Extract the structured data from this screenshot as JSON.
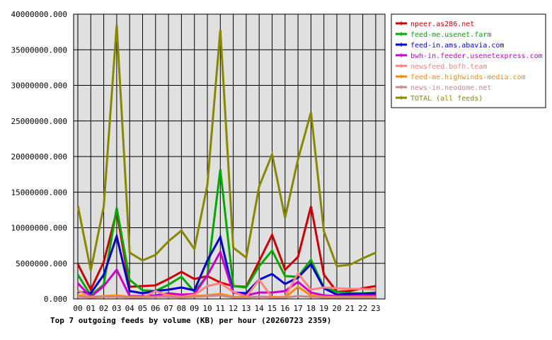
{
  "chart_data": {
    "type": "line",
    "title": "Top 7 outgoing feeds by volume (KB) per hour (20260723 2359)",
    "categories": [
      "00",
      "01",
      "02",
      "03",
      "04",
      "05",
      "06",
      "07",
      "08",
      "09",
      "10",
      "11",
      "12",
      "13",
      "14",
      "15",
      "16",
      "17",
      "18",
      "19",
      "20",
      "21",
      "22",
      "23"
    ],
    "y_tick_labels": [
      "0.000",
      "5000000.000",
      "10000000.000",
      "15000000.000",
      "20000000.000",
      "25000000.000",
      "30000000.000",
      "35000000.000",
      "40000000.000"
    ],
    "ylim": [
      0,
      40000000
    ],
    "grid": true,
    "legend_position": "right",
    "plot_background": "#e0e0e0",
    "series": [
      {
        "name": "npeer.as286.net",
        "color": "#cc0000",
        "values": [
          4900000,
          1300000,
          5200000,
          12300000,
          1700000,
          1800000,
          1900000,
          2800000,
          3800000,
          2800000,
          3200000,
          2300000,
          1800000,
          1700000,
          5300000,
          9000000,
          4100000,
          5900000,
          13000000,
          3400000,
          1000000,
          1100000,
          1500000,
          1800000
        ]
      },
      {
        "name": "feed-me.usenet.farm",
        "color": "#00aa00",
        "values": [
          3400000,
          500000,
          2000000,
          12800000,
          2700000,
          1200000,
          1100000,
          2000000,
          3100000,
          1000000,
          3300000,
          18200000,
          1800000,
          1600000,
          4600000,
          6800000,
          3200000,
          3100000,
          5500000,
          1600000,
          1000000,
          800000,
          800000,
          900000
        ]
      },
      {
        "name": "feed-in.ams.abavia.com",
        "color": "#0000cc",
        "values": [
          1000000,
          800000,
          3400000,
          8800000,
          1100000,
          800000,
          1100000,
          1300000,
          1600000,
          1200000,
          5400000,
          8700000,
          900000,
          800000,
          2700000,
          3500000,
          2100000,
          3000000,
          4900000,
          1500000,
          600000,
          700000,
          700000,
          800000
        ]
      },
      {
        "name": "bwh-in.feeder.usenetexpress.com",
        "color": "#cc00cc",
        "values": [
          2200000,
          300000,
          1800000,
          4100000,
          400000,
          400000,
          500000,
          800000,
          600000,
          700000,
          3300000,
          6600000,
          900000,
          500000,
          900000,
          900000,
          1100000,
          2400000,
          900000,
          500000,
          400000,
          400000,
          500000,
          500000
        ]
      },
      {
        "name": "newsfeed.bofh.team",
        "color": "#ff8080",
        "values": [
          1200000,
          200000,
          300000,
          400000,
          300000,
          200000,
          1100000,
          500000,
          300000,
          600000,
          1800000,
          2200000,
          1000000,
          300000,
          2700000,
          200000,
          300000,
          3600000,
          1300000,
          1600000,
          1500000,
          1400000,
          1400000,
          1300000
        ]
      },
      {
        "name": "feed-me.highwinds-media.com",
        "color": "#ff8800",
        "values": [
          500000,
          300000,
          400000,
          500000,
          300000,
          300000,
          300000,
          400000,
          300000,
          400000,
          500000,
          700000,
          300000,
          300000,
          300000,
          300000,
          200000,
          1700000,
          500000,
          300000,
          300000,
          300000,
          300000,
          300000
        ]
      },
      {
        "name": "news-in.neodome.net",
        "color": "#cc8888",
        "values": [
          300000,
          200000,
          300000,
          300000,
          200000,
          200000,
          300000,
          300000,
          200000,
          300000,
          400000,
          500000,
          200000,
          200000,
          300000,
          200000,
          200000,
          400000,
          300000,
          200000,
          200000,
          200000,
          200000,
          200000
        ]
      },
      {
        "name": "TOTAL (all feeds)",
        "color": "#888800",
        "values": [
          13100000,
          4000000,
          13000000,
          38500000,
          6500000,
          5400000,
          6200000,
          8100000,
          9600000,
          7000000,
          16000000,
          37800000,
          7200000,
          5800000,
          15800000,
          20300000,
          11400000,
          19600000,
          26200000,
          9500000,
          4600000,
          4800000,
          5700000,
          6500000
        ]
      }
    ]
  }
}
